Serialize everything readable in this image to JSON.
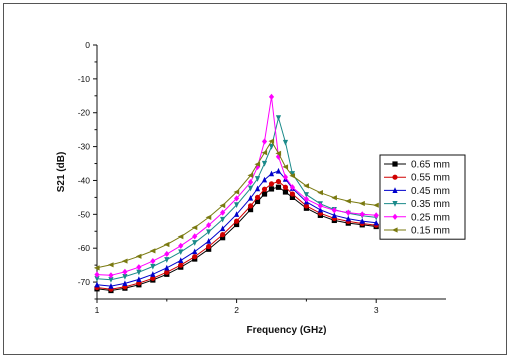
{
  "chart_data": {
    "type": "line",
    "title": "",
    "xlabel": "Frequency (GHz)",
    "ylabel": "S21 (dB)",
    "xlim": [
      1.0,
      3.5
    ],
    "ylim": [
      -75,
      0
    ],
    "xticks": [
      1,
      2,
      3
    ],
    "yticks": [
      0,
      -10,
      -20,
      -30,
      -40,
      -50,
      -60,
      -70
    ],
    "grid": false,
    "legend": "right",
    "x": [
      1.0,
      1.1,
      1.2,
      1.3,
      1.4,
      1.5,
      1.6,
      1.7,
      1.8,
      1.9,
      2.0,
      2.1,
      2.15,
      2.2,
      2.25,
      2.3,
      2.35,
      2.4,
      2.5,
      2.6,
      2.7,
      2.8,
      2.9,
      3.0
    ],
    "series": [
      {
        "name": "0.65 mm",
        "color": "#000000",
        "marker": "square",
        "values": [
          -72.0,
          -72.5,
          -71.8,
          -70.8,
          -69.4,
          -67.7,
          -65.6,
          -63.2,
          -60.3,
          -56.9,
          -53.0,
          -48.6,
          -46.2,
          -44.0,
          -42.5,
          -42.0,
          -43.4,
          -45.0,
          -48.2,
          -50.3,
          -51.8,
          -52.6,
          -53.1,
          -53.6
        ]
      },
      {
        "name": "0.55 mm",
        "color": "#d00000",
        "marker": "circle",
        "values": [
          -71.6,
          -72.1,
          -71.4,
          -70.3,
          -68.9,
          -67.1,
          -65.0,
          -62.5,
          -59.5,
          -56.0,
          -52.0,
          -47.5,
          -45.0,
          -42.6,
          -41.0,
          -40.3,
          -42.0,
          -44.0,
          -47.5,
          -49.7,
          -51.2,
          -52.1,
          -52.7,
          -53.2
        ]
      },
      {
        "name": "0.45 mm",
        "color": "#0000cc",
        "marker": "triangle-up",
        "values": [
          -70.8,
          -71.2,
          -70.4,
          -69.2,
          -67.7,
          -65.8,
          -63.6,
          -61.0,
          -57.9,
          -54.2,
          -50.0,
          -45.2,
          -42.4,
          -39.8,
          -38.0,
          -37.2,
          -39.6,
          -42.3,
          -46.3,
          -48.7,
          -50.3,
          -51.3,
          -52.0,
          -52.5
        ]
      },
      {
        "name": "0.35 mm",
        "color": "#1a8a8a",
        "marker": "triangle-down",
        "values": [
          -69.0,
          -69.3,
          -68.4,
          -67.1,
          -65.4,
          -63.4,
          -61.1,
          -58.4,
          -55.2,
          -51.5,
          -47.2,
          -42.3,
          -39.5,
          -35.0,
          -30.0,
          -21.5,
          -28.8,
          -38.0,
          -44.2,
          -46.9,
          -48.6,
          -49.7,
          -50.4,
          -50.9
        ]
      },
      {
        "name": "0.25 mm",
        "color": "#ff00ff",
        "marker": "diamond",
        "values": [
          -67.8,
          -68.0,
          -67.0,
          -65.6,
          -63.8,
          -61.7,
          -59.3,
          -56.5,
          -53.2,
          -49.5,
          -45.3,
          -40.5,
          -36.0,
          -28.5,
          -15.3,
          -33.0,
          -39.0,
          -42.0,
          -45.5,
          -47.5,
          -48.8,
          -49.5,
          -50.0,
          -50.3
        ]
      },
      {
        "name": "0.15 mm",
        "color": "#7a7a10",
        "marker": "triangle-left",
        "values": [
          -65.8,
          -64.9,
          -63.8,
          -62.4,
          -60.8,
          -58.9,
          -56.6,
          -53.9,
          -50.9,
          -47.4,
          -43.4,
          -38.5,
          -35.2,
          -31.8,
          -28.4,
          -32.0,
          -36.0,
          -38.6,
          -41.6,
          -43.6,
          -45.1,
          -46.1,
          -46.8,
          -47.3
        ]
      }
    ]
  }
}
